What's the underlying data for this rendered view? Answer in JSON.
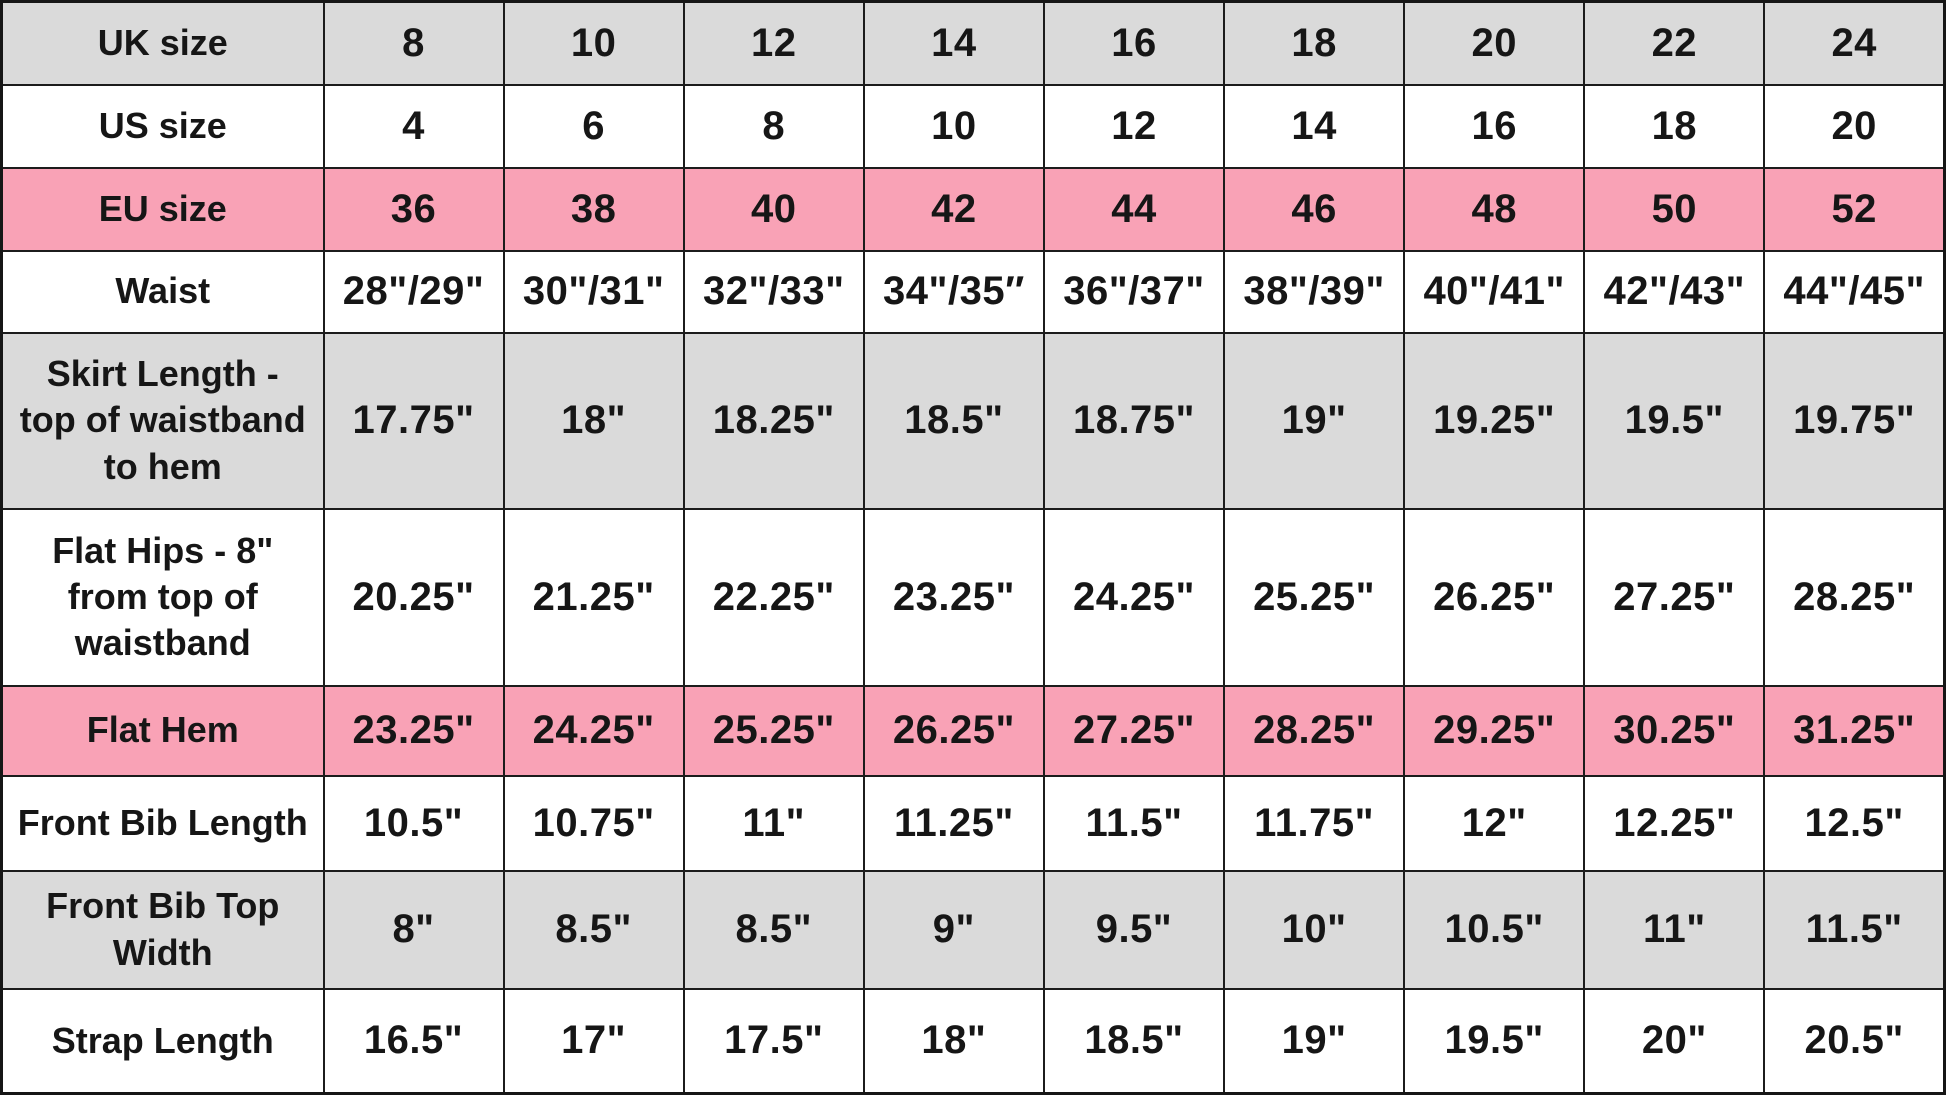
{
  "colors": {
    "row_gray": "#DADADA",
    "row_pink": "#F9A2B6",
    "row_white": "#FFFFFF",
    "grid_border": "#1c1c1c",
    "text": "#161616"
  },
  "chart_data": {
    "type": "table",
    "columns_per_row": 9,
    "rows": [
      {
        "label": "UK size",
        "bg": "gray",
        "values": [
          "8",
          "10",
          "12",
          "14",
          "16",
          "18",
          "20",
          "22",
          "24"
        ]
      },
      {
        "label": "US size",
        "bg": "white",
        "values": [
          "4",
          "6",
          "8",
          "10",
          "12",
          "14",
          "16",
          "18",
          "20"
        ]
      },
      {
        "label": "EU size",
        "bg": "pink",
        "values": [
          "36",
          "38",
          "40",
          "42",
          "44",
          "46",
          "48",
          "50",
          "52"
        ]
      },
      {
        "label": "Waist",
        "bg": "white",
        "values": [
          "28\"/29\"",
          "30\"/31\"",
          "32\"/33\"",
          "34\"/35″",
          "36\"/37\"",
          "38\"/39\"",
          "40\"/41\"",
          "42\"/43\"",
          "44\"/45\""
        ]
      },
      {
        "label": "Skirt Length -\ntop of waistband\nto hem",
        "bg": "gray",
        "values": [
          "17.75\"",
          "18\"",
          "18.25\"",
          "18.5\"",
          "18.75\"",
          "19\"",
          "19.25\"",
          "19.5\"",
          "19.75\""
        ]
      },
      {
        "label": "Flat Hips - 8\"\nfrom top of\nwaistband",
        "bg": "white",
        "values": [
          "20.25\"",
          "21.25\"",
          "22.25\"",
          "23.25\"",
          "24.25\"",
          "25.25\"",
          "26.25\"",
          "27.25\"",
          "28.25\""
        ]
      },
      {
        "label": "Flat Hem",
        "bg": "pink",
        "values": [
          "23.25\"",
          "24.25\"",
          "25.25\"",
          "26.25\"",
          "27.25\"",
          "28.25\"",
          "29.25\"",
          "30.25\"",
          "31.25\""
        ]
      },
      {
        "label": "Front Bib Length",
        "bg": "white",
        "values": [
          "10.5\"",
          "10.75\"",
          "11\"",
          "11.25\"",
          "11.5\"",
          "11.75\"",
          "12\"",
          "12.25\"",
          "12.5\""
        ]
      },
      {
        "label": "Front Bib Top\nWidth",
        "bg": "gray",
        "values": [
          "8\"",
          "8.5\"",
          "8.5\"",
          "9\"",
          "9.5\"",
          "10\"",
          "10.5\"",
          "11\"",
          "11.5\""
        ]
      },
      {
        "label": "Strap Length",
        "bg": "white",
        "values": [
          "16.5\"",
          "17\"",
          "17.5\"",
          "18\"",
          "18.5\"",
          "19\"",
          "19.5\"",
          "20\"",
          "20.5\""
        ]
      }
    ]
  }
}
